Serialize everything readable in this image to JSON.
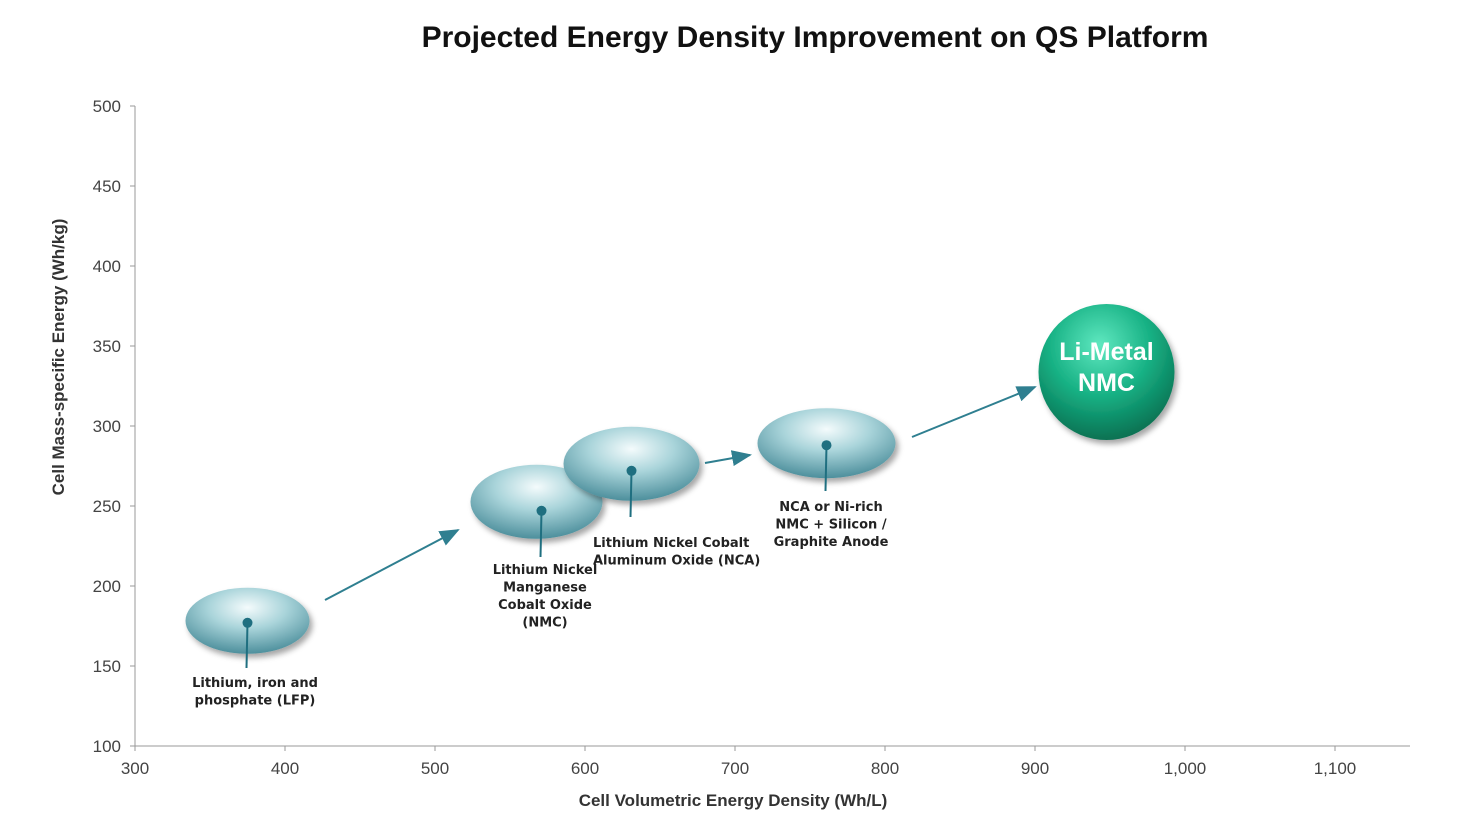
{
  "chart_data": {
    "type": "scatter",
    "title": "Projected Energy Density Improvement on QS Platform",
    "xlabel": "Cell Volumetric Energy Density (Wh/L)",
    "ylabel": "Cell Mass-specific Energy (Wh/kg)",
    "xlim": [
      300,
      1150
    ],
    "ylim": [
      100,
      500
    ],
    "xticks": [
      300,
      400,
      500,
      600,
      700,
      800,
      900,
      1000,
      1100
    ],
    "xtick_labels": [
      "300",
      "400",
      "500",
      "600",
      "700",
      "800",
      "900",
      "1,000",
      "1,100"
    ],
    "yticks": [
      100,
      150,
      200,
      250,
      300,
      350,
      400,
      450,
      500
    ],
    "ytick_labels": [
      "100",
      "150",
      "200",
      "250",
      "300",
      "350",
      "400",
      "450",
      "500"
    ],
    "grid": false,
    "points": [
      {
        "name": "LFP",
        "x": 375,
        "y": 177,
        "label": [
          "Lithium, iron and",
          "phosphate (LFP)"
        ]
      },
      {
        "name": "NMC",
        "x": 571,
        "y": 247,
        "label": [
          "Lithium Nickel",
          "Manganese",
          "Cobalt Oxide",
          "(NMC)"
        ]
      },
      {
        "name": "NCA",
        "x": 631,
        "y": 272,
        "label": [
          "Lithium Nickel Cobalt",
          "Aluminum Oxide (NCA)"
        ]
      },
      {
        "name": "NCA or Ni-rich NMC + Silicon",
        "x": 761,
        "y": 288,
        "label": [
          "NCA or Ni-rich",
          "NMC + Silicon /",
          " Graphite Anode"
        ]
      },
      {
        "name": "Li-Metal NMC",
        "x": 947,
        "y": 335,
        "label": [
          "Li-Metal",
          "NMC"
        ],
        "highlight": true
      }
    ],
    "colors": {
      "bubble": "#8fc3cc",
      "dot": "#1f6f80",
      "highlight": "#1aa67d",
      "arrow": "#2f7f90"
    }
  }
}
